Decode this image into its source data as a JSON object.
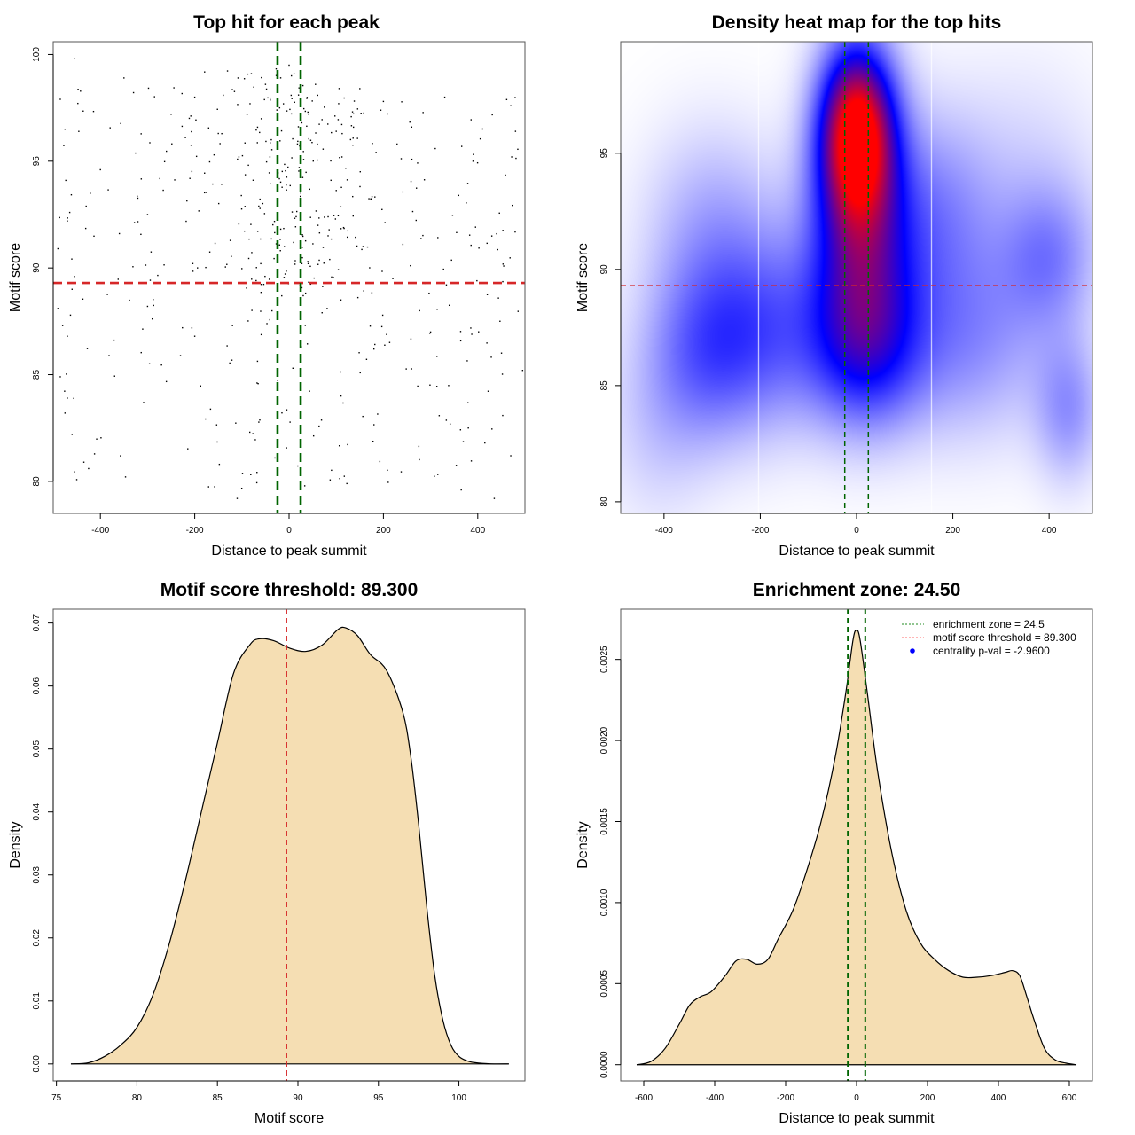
{
  "figure": {
    "layout": "2x2 grid"
  },
  "chart_data": [
    {
      "id": "scatter",
      "type": "scatter",
      "title": "Top hit for each peak",
      "xlabel": "Distance to peak summit",
      "ylabel": "Motif score",
      "xlim": [
        -500,
        500
      ],
      "ylim": [
        78.5,
        100.6
      ],
      "xticks": [
        -400,
        -200,
        0,
        200,
        400
      ],
      "yticks": [
        80,
        85,
        90,
        95,
        100
      ],
      "grid": false,
      "point_color": "#000000",
      "n_points_approx": 600,
      "distribution_note": "points concentrated near x=0 and high scores; spread roughly uniformly across x from -490 to 490",
      "sample_points": [
        {
          "x": -455,
          "y": 99.8
        },
        {
          "x": -485,
          "y": 97.9
        },
        {
          "x": -475,
          "y": 96.5
        },
        {
          "x": -465,
          "y": 92.6
        },
        {
          "x": -470,
          "y": 92.2
        },
        {
          "x": -490,
          "y": 90.9
        },
        {
          "x": -455,
          "y": 89.6
        },
        {
          "x": -460,
          "y": 89.0
        },
        {
          "x": -490,
          "y": 88.1
        },
        {
          "x": -480,
          "y": 87.3
        },
        {
          "x": -470,
          "y": 86.8
        },
        {
          "x": -485,
          "y": 84.9
        },
        {
          "x": -470,
          "y": 83.9
        },
        {
          "x": -475,
          "y": 83.2
        },
        {
          "x": -460,
          "y": 82.2
        },
        {
          "x": -435,
          "y": 80.9
        },
        {
          "x": -425,
          "y": 80.6
        },
        {
          "x": -400,
          "y": 94.6
        },
        {
          "x": -350,
          "y": 98.9
        },
        {
          "x": -300,
          "y": 92.5
        },
        {
          "x": -250,
          "y": 97.2
        },
        {
          "x": -200,
          "y": 98.0
        },
        {
          "x": -150,
          "y": 96.3
        },
        {
          "x": -110,
          "y": 79.2
        },
        {
          "x": -80,
          "y": 99.1
        },
        {
          "x": -50,
          "y": 98.6
        },
        {
          "x": -20,
          "y": 97.5
        },
        {
          "x": 0,
          "y": 99.5
        },
        {
          "x": 5,
          "y": 99.0
        },
        {
          "x": 20,
          "y": 98.1
        },
        {
          "x": 40,
          "y": 97.3
        },
        {
          "x": 60,
          "y": 95.8
        },
        {
          "x": 100,
          "y": 96.4
        },
        {
          "x": 150,
          "y": 98.4
        },
        {
          "x": 200,
          "y": 97.8
        },
        {
          "x": 260,
          "y": 96.6
        },
        {
          "x": 330,
          "y": 98.0
        },
        {
          "x": 390,
          "y": 95.0
        },
        {
          "x": 440,
          "y": 91.6
        },
        {
          "x": 470,
          "y": 97.6
        },
        {
          "x": 480,
          "y": 96.4
        },
        {
          "x": 495,
          "y": 85.2
        },
        {
          "x": 365,
          "y": 79.6
        },
        {
          "x": 435,
          "y": 79.2
        },
        {
          "x": 380,
          "y": 82.5
        },
        {
          "x": 415,
          "y": 81.8
        },
        {
          "x": 470,
          "y": 81.2
        },
        {
          "x": -30,
          "y": 81.1
        },
        {
          "x": 30,
          "y": 88.7
        },
        {
          "x": 25,
          "y": 93.5
        },
        {
          "x": -10,
          "y": 91.0
        },
        {
          "x": 15,
          "y": 92.4
        },
        {
          "x": -60,
          "y": 90.2
        },
        {
          "x": 70,
          "y": 87.9
        },
        {
          "x": 110,
          "y": 88.5
        },
        {
          "x": -120,
          "y": 87.3
        },
        {
          "x": -200,
          "y": 86.8
        },
        {
          "x": -300,
          "y": 88.2
        },
        {
          "x": 220,
          "y": 89.5
        },
        {
          "x": 300,
          "y": 87.0
        }
      ],
      "reference_lines": [
        {
          "orientation": "horizontal",
          "value": 89.3,
          "color": "#d62728",
          "style": "dashed",
          "label": "motif score threshold"
        },
        {
          "orientation": "vertical",
          "value": -24.5,
          "color": "#006400",
          "style": "dashed",
          "label": "enrichment zone lower"
        },
        {
          "orientation": "vertical",
          "value": 24.5,
          "color": "#006400",
          "style": "dashed",
          "label": "enrichment zone upper"
        }
      ]
    },
    {
      "id": "heatmap",
      "type": "heatmap",
      "title": "Density heat map for the top hits",
      "xlabel": "Distance to peak summit",
      "ylabel": "Motif score",
      "xlim": [
        -490,
        490
      ],
      "ylim": [
        79.5,
        99.8
      ],
      "xticks": [
        -400,
        -200,
        0,
        200,
        400
      ],
      "yticks": [
        80,
        85,
        90,
        95
      ],
      "colormap": [
        "#ffffff",
        "#0000ff",
        "#ff0000"
      ],
      "hotspots": [
        {
          "x": 0,
          "y": 96.0,
          "intensity": 1.0,
          "sx": 55,
          "sy": 2.6
        },
        {
          "x": 10,
          "y": 91.0,
          "intensity": 0.55,
          "sx": 75,
          "sy": 3.5
        },
        {
          "x": 20,
          "y": 86.5,
          "intensity": 0.35,
          "sx": 90,
          "sy": 2.5
        },
        {
          "x": -310,
          "y": 86.5,
          "intensity": 0.28,
          "sx": 90,
          "sy": 2.8
        },
        {
          "x": -180,
          "y": 87.5,
          "intensity": 0.22,
          "sx": 90,
          "sy": 3.0
        },
        {
          "x": -300,
          "y": 92.0,
          "intensity": 0.15,
          "sx": 100,
          "sy": 3.0
        },
        {
          "x": 400,
          "y": 90.5,
          "intensity": 0.2,
          "sx": 70,
          "sy": 2.2
        },
        {
          "x": 440,
          "y": 84.0,
          "intensity": 0.2,
          "sx": 50,
          "sy": 2.2
        },
        {
          "x": 240,
          "y": 87.0,
          "intensity": 0.2,
          "sx": 110,
          "sy": 3.0
        },
        {
          "x": 170,
          "y": 92.5,
          "intensity": 0.18,
          "sx": 80,
          "sy": 3.0
        },
        {
          "x": 350,
          "y": 94.0,
          "intensity": 0.08,
          "sx": 120,
          "sy": 3.5
        },
        {
          "x": -420,
          "y": 83.0,
          "intensity": 0.08,
          "sx": 80,
          "sy": 3.0
        }
      ],
      "white_vertical_lines": [
        -205,
        155
      ],
      "reference_lines": [
        {
          "orientation": "horizontal",
          "value": 89.3,
          "color": "#d62728",
          "style": "dashed"
        },
        {
          "orientation": "vertical",
          "value": -24.5,
          "color": "#006400",
          "style": "dashed"
        },
        {
          "orientation": "vertical",
          "value": 24.5,
          "color": "#006400",
          "style": "dashed"
        }
      ]
    },
    {
      "id": "score-density",
      "type": "area",
      "title": "Motif score threshold: 89.300",
      "xlabel": "Motif score",
      "ylabel": "Density",
      "xlim": [
        74.8,
        104.1
      ],
      "ylim": [
        -0.0027,
        0.0722
      ],
      "xticks": [
        75,
        80,
        85,
        90,
        95,
        100
      ],
      "yticks": [
        "0.00",
        "0.01",
        "0.02",
        "0.03",
        "0.04",
        "0.05",
        "0.06",
        "0.07"
      ],
      "fill_color": "#f5deb3",
      "line_color": "#000000",
      "x": [
        75.9,
        77.0,
        78.0,
        79.0,
        80.0,
        81.0,
        82.0,
        83.0,
        84.0,
        85.0,
        86.0,
        87.0,
        87.6,
        88.5,
        89.5,
        90.5,
        91.5,
        92.5,
        93.0,
        93.7,
        94.5,
        95.5,
        96.5,
        97.0,
        97.5,
        98.0,
        98.5,
        99.0,
        99.5,
        100.0,
        100.5,
        101.0,
        102.0,
        103.1
      ],
      "values": [
        0.0,
        0.0002,
        0.0012,
        0.003,
        0.0058,
        0.011,
        0.019,
        0.029,
        0.04,
        0.051,
        0.062,
        0.0665,
        0.0675,
        0.0672,
        0.066,
        0.0655,
        0.0665,
        0.069,
        0.0692,
        0.068,
        0.065,
        0.0625,
        0.056,
        0.049,
        0.038,
        0.025,
        0.014,
        0.007,
        0.003,
        0.0012,
        0.0005,
        0.0002,
        0.0,
        0.0
      ],
      "reference_lines": [
        {
          "orientation": "vertical",
          "value": 89.3,
          "color": "#d62728",
          "style": "dashed"
        }
      ]
    },
    {
      "id": "distance-density",
      "type": "area",
      "title": "Enrichment zone: 24.50",
      "xlabel": "Distance to peak summit",
      "ylabel": "Density",
      "xlim": [
        -665,
        665
      ],
      "ylim": [
        -0.0001,
        0.00281
      ],
      "xticks": [
        -600,
        -400,
        -200,
        0,
        200,
        400,
        600
      ],
      "yticks": [
        "0.0000",
        "0.0005",
        "0.0010",
        "0.0015",
        "0.0020",
        "0.0025"
      ],
      "fill_color": "#f5deb3",
      "line_color": "#000000",
      "x": [
        -620,
        -580,
        -540,
        -500,
        -470,
        -440,
        -410,
        -370,
        -340,
        -310,
        -280,
        -250,
        -220,
        -180,
        -140,
        -100,
        -60,
        -30,
        -10,
        0,
        10,
        30,
        60,
        100,
        140,
        180,
        220,
        260,
        300,
        340,
        380,
        420,
        440,
        460,
        480,
        500,
        530,
        560,
        590,
        620
      ],
      "values": [
        0.0,
        2e-05,
        0.0001,
        0.00025,
        0.00037,
        0.00042,
        0.00045,
        0.00055,
        0.00064,
        0.00065,
        0.00062,
        0.00065,
        0.00078,
        0.00095,
        0.0012,
        0.0015,
        0.0019,
        0.0023,
        0.00262,
        0.00268,
        0.00262,
        0.0023,
        0.0018,
        0.0013,
        0.00095,
        0.00075,
        0.00065,
        0.00058,
        0.00054,
        0.00054,
        0.00055,
        0.00057,
        0.00058,
        0.00055,
        0.00042,
        0.00028,
        0.0001,
        3e-05,
        1e-05,
        0.0
      ],
      "reference_lines": [
        {
          "orientation": "vertical",
          "value": -24.5,
          "color": "#006400",
          "style": "dashed"
        },
        {
          "orientation": "vertical",
          "value": 24.5,
          "color": "#006400",
          "style": "dashed"
        }
      ],
      "legend": {
        "position": "top-right",
        "entries": [
          {
            "label": "enrichment zone = 24.5",
            "symbol": "dotted-line",
            "color": "#228b22"
          },
          {
            "label": "motif score threshold = 89.300",
            "symbol": "dotted-line",
            "color": "#ff6b6b"
          },
          {
            "label": "centrality p-val = -2.9600",
            "symbol": "dot",
            "color": "#0000ff"
          }
        ]
      }
    }
  ]
}
